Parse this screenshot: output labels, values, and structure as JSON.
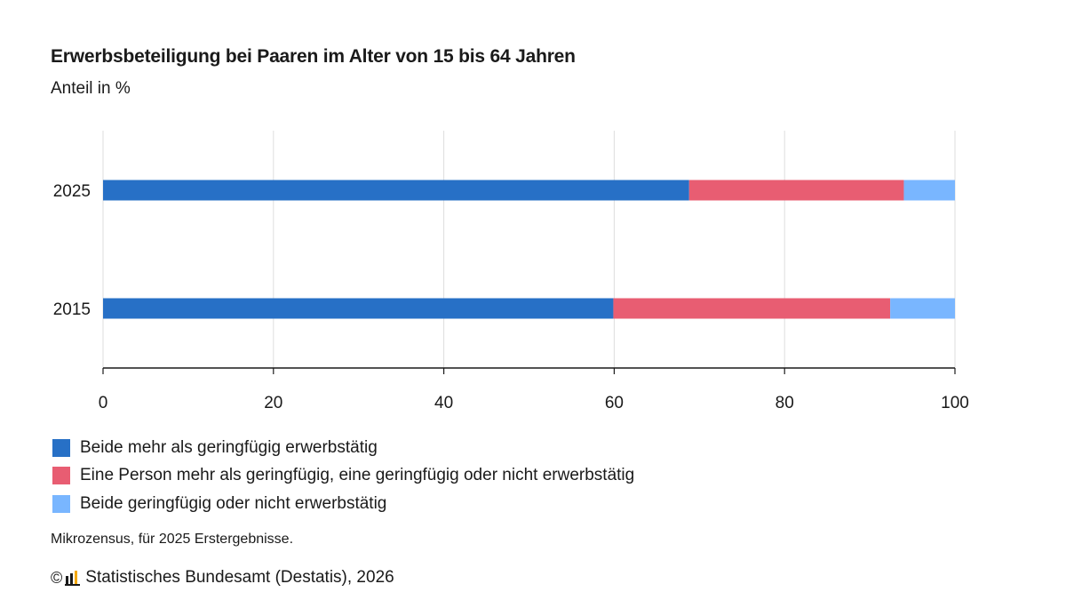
{
  "title": "Erwerbsbeteiligung bei Paaren im Alter von 15 bis 64 Jahren",
  "subtitle": "Anteil in %",
  "note": "Mikrozensus, für 2025 Erstergebnisse.",
  "source": "Statistisches Bundesamt (Destatis), 2026",
  "copyright_symbol": "©",
  "icons": {
    "copyright": "copyright-icon",
    "logo": "destatis-logo-icon"
  },
  "chart_data": {
    "type": "bar",
    "orientation": "horizontal",
    "stacked": true,
    "categories": [
      "2025",
      "2015"
    ],
    "series": [
      {
        "name": "Beide mehr als geringfügig erwerbstätig",
        "color": "#2770c6",
        "values": [
          68.8,
          59.9
        ]
      },
      {
        "name": "Eine Person mehr als geringfügig, eine geringfügig oder nicht erwerbstätig",
        "color": "#e85d72",
        "values": [
          25.2,
          32.5
        ]
      },
      {
        "name": "Beide geringfügig oder nicht erwerbstätig",
        "color": "#79b6ff",
        "values": [
          6.0,
          7.6
        ]
      }
    ],
    "xlim": [
      0,
      100
    ],
    "xticks": [
      0,
      20,
      40,
      60,
      80,
      100
    ],
    "grid": true,
    "legend": "bottom"
  }
}
